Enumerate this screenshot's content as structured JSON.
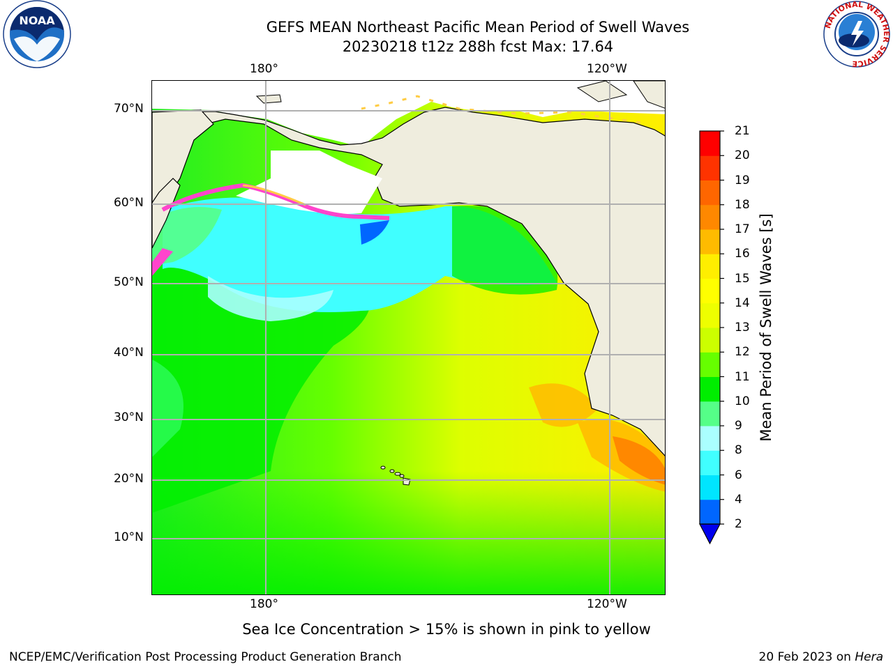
{
  "header": {
    "title_line1": "GEFS MEAN Northeast Pacific Mean Period of Swell Waves",
    "title_line2": "20230218 t12z 288h fcst   Max: 17.64"
  },
  "map": {
    "top_lon_labels": [
      "180°",
      "120°W"
    ],
    "bottom_lon_labels": [
      "180°",
      "120°W"
    ],
    "lat_labels": [
      "70°N",
      "60°N",
      "50°N",
      "40°N",
      "30°N",
      "20°N",
      "10°N"
    ],
    "colors": {
      "land": "#efedde",
      "coast": "#000000",
      "grid": "#b0b0b0",
      "ice_pink": "#ff44cc",
      "ice_yellow": "#ffcc44"
    }
  },
  "colorbar": {
    "label": "Mean Period of Swell Waves [s]",
    "ticks": [
      "2",
      "4",
      "6",
      "8",
      "9",
      "10",
      "11",
      "12",
      "13",
      "14",
      "15",
      "16",
      "17",
      "18",
      "19",
      "20",
      "21"
    ],
    "colors": [
      "#0066ff",
      "#00e5ff",
      "#40ffff",
      "#aaffff",
      "#55ff88",
      "#00ee00",
      "#66ff00",
      "#ccff00",
      "#eeff00",
      "#ffff00",
      "#ffee00",
      "#ffbb00",
      "#ff8800",
      "#ff6600",
      "#ff3300",
      "#ff0000"
    ],
    "under_color": "#0000ee"
  },
  "footer": {
    "caption": "Sea Ice Concentration > 15% is shown in pink to yellow",
    "credit_left": "NCEP/EMC/Verification Post Processing Product Generation Branch",
    "credit_date": "20 Feb 2023",
    "credit_on": "on",
    "credit_host": "Hera"
  },
  "logos": {
    "noaa_text": "NOAA",
    "nws_ring_text": "NATIONAL WEATHER SERVICE"
  }
}
